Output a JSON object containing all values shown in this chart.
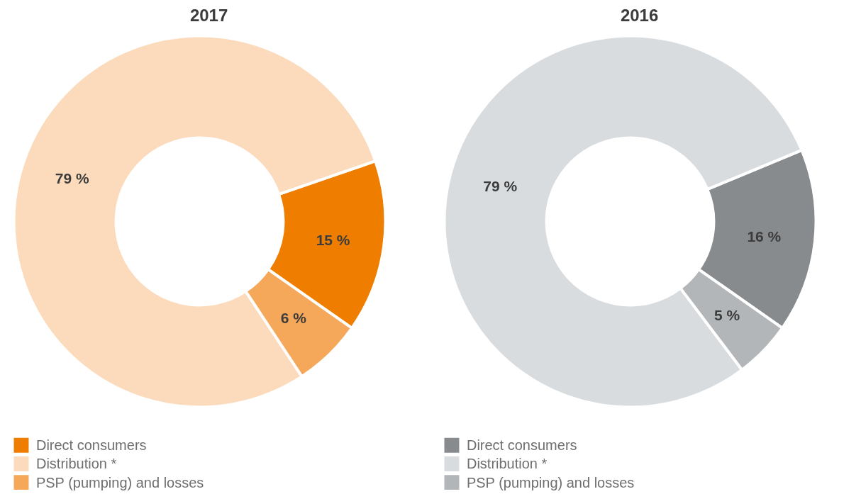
{
  "chart_data": [
    {
      "type": "donut",
      "title": "2017",
      "categories": [
        "Direct consumers",
        "Distribution *",
        "PSP (pumping) and losses"
      ],
      "values": [
        15,
        79,
        6
      ],
      "colors": [
        "#ef7d00",
        "#fcdbbd",
        "#f5a75a"
      ],
      "value_labels": [
        "15 %",
        "79 %",
        "6 %"
      ],
      "legend": "bottom left"
    },
    {
      "type": "donut",
      "title": "2016",
      "categories": [
        "Direct consumers",
        "Distribution *",
        "PSP (pumping) and losses"
      ],
      "values": [
        16,
        79,
        5
      ],
      "colors": [
        "#878b8e",
        "#d9dcdf",
        "#b2b6b8"
      ],
      "value_labels": [
        "16 %",
        "79 %",
        "5 %"
      ],
      "legend": "bottom left"
    }
  ]
}
